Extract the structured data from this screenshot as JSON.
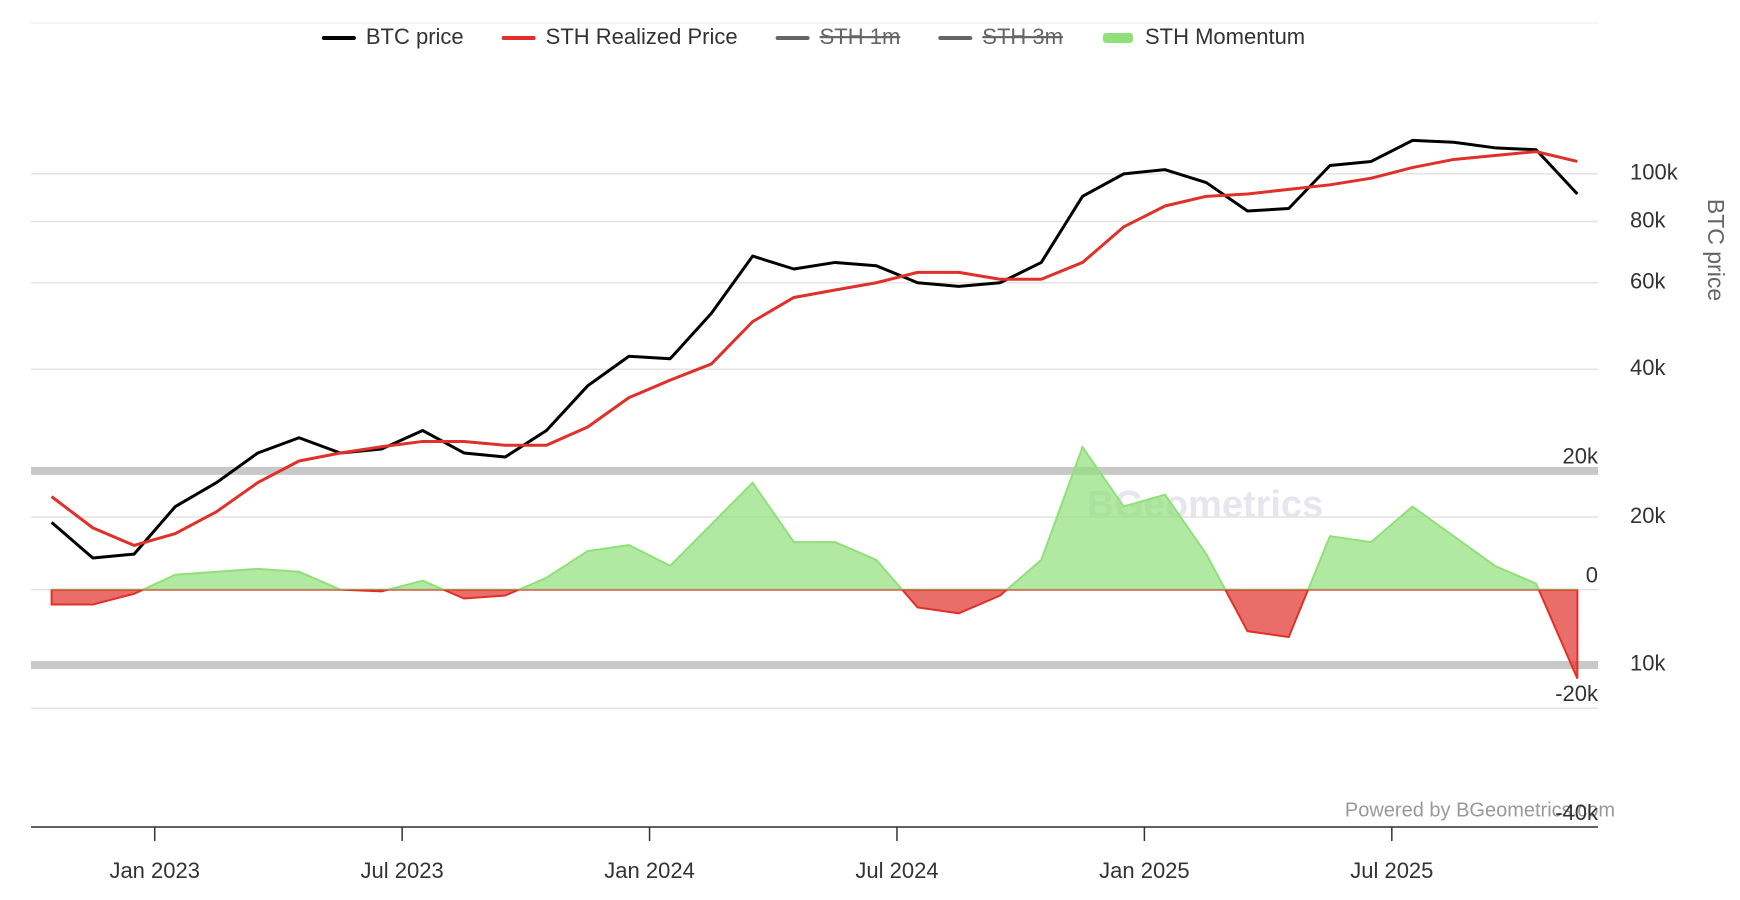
{
  "chart_data": {
    "type": "line",
    "watermark": "BGeometrics",
    "credit": "Powered by BGeometrics.com",
    "y_label": "BTC price",
    "x": [
      "2022-10",
      "2022-11",
      "2022-12",
      "2023-01",
      "2023-02",
      "2023-03",
      "2023-04",
      "2023-05",
      "2023-06",
      "2023-07",
      "2023-08",
      "2023-09",
      "2023-10",
      "2023-11",
      "2023-12",
      "2024-01",
      "2024-02",
      "2024-03",
      "2024-04",
      "2024-05",
      "2024-06",
      "2024-07",
      "2024-08",
      "2024-09",
      "2024-10",
      "2024-11",
      "2024-12",
      "2025-01",
      "2025-02",
      "2025-03",
      "2025-04",
      "2025-05",
      "2025-06",
      "2025-07",
      "2025-08",
      "2025-09",
      "2025-10",
      "2025-11"
    ],
    "xlim": [
      "2022-10",
      "2025-12"
    ],
    "xticks": [
      {
        "value": "2023-01",
        "label": "Jan 2023"
      },
      {
        "value": "2023-07",
        "label": "Jul 2023"
      },
      {
        "value": "2024-01",
        "label": "Jan 2024"
      },
      {
        "value": "2024-07",
        "label": "Jul 2024"
      },
      {
        "value": "2025-01",
        "label": "Jan 2025"
      },
      {
        "value": "2025-07",
        "label": "Jul 2025"
      }
    ],
    "log_scale": true,
    "ylim": [
      4670,
      202000
    ],
    "yticks": [
      {
        "value": 10000,
        "label": "10k"
      },
      {
        "value": 20000,
        "label": "20k"
      },
      {
        "value": 40000,
        "label": "40k"
      },
      {
        "value": 60000,
        "label": "60k"
      },
      {
        "value": 80000,
        "label": "80k"
      },
      {
        "value": 100000,
        "label": "100k"
      }
    ],
    "y2lim": [
      -40000,
      95300
    ],
    "y2ticks": [
      {
        "value": 20000,
        "label": "20k"
      },
      0,
      {
        "value": -20000,
        "label": "-20k"
      },
      {
        "value": -40000,
        "label": "-40k"
      }
    ],
    "y2_bands": [
      20000,
      -12700
    ],
    "series": [
      {
        "name": "BTC price",
        "color": "#000000",
        "values": [
          19500,
          16500,
          16800,
          21000,
          23500,
          27000,
          29000,
          27000,
          27500,
          30000,
          27000,
          26500,
          30000,
          37000,
          42500,
          42000,
          52000,
          68000,
          64000,
          66000,
          65000,
          60000,
          59000,
          60000,
          66000,
          90000,
          100000,
          102000,
          96000,
          84000,
          85000,
          104000,
          106000,
          117000,
          116000,
          113000,
          112000,
          91000
        ]
      },
      {
        "name": "STH Realized Price",
        "color": "#e0302a",
        "values": [
          22000,
          19000,
          17500,
          18500,
          20500,
          23500,
          26000,
          27000,
          27800,
          28500,
          28500,
          28000,
          28000,
          30500,
          35000,
          38000,
          41000,
          50000,
          56000,
          58000,
          60000,
          63000,
          63000,
          61000,
          61000,
          66000,
          78000,
          86000,
          90000,
          91000,
          93000,
          95000,
          98000,
          103000,
          107000,
          109000,
          111000,
          106000
        ]
      },
      {
        "name": "STH Momentum",
        "color": "#90e07a",
        "negative_color": "#e0302a",
        "axis": "y2",
        "values": [
          -2500,
          -2500,
          -700,
          2500,
          3000,
          3500,
          3000,
          0,
          -300,
          1500,
          -1500,
          -1000,
          2000,
          6500,
          7500,
          4000,
          11000,
          18000,
          8000,
          8000,
          5000,
          -3000,
          -4000,
          -1000,
          5000,
          24000,
          14000,
          16000,
          6000,
          -7000,
          -8000,
          9000,
          8000,
          14000,
          9000,
          4000,
          1000,
          -15000
        ]
      }
    ],
    "hidden_series": [
      {
        "name": "STH 1m",
        "color": "#666666"
      },
      {
        "name": "STH 3m",
        "color": "#666666"
      }
    ]
  }
}
